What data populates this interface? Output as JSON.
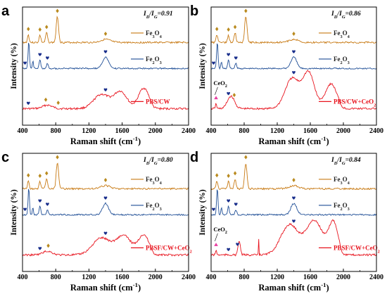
{
  "colors": {
    "fe3o4": "#c87a14",
    "fe2o3": "#1f4e96",
    "sample": "#e8141e",
    "marker_fe3o4": "#b98a1e",
    "marker_fe2o3": "#1a2f8c",
    "marker_ceo2": "#e83ca0"
  },
  "marker_icons": {
    "fe3o4": "diamond-icon",
    "fe2o3": "heart-icon",
    "ceo2": "triangle-icon"
  },
  "chart_data": [
    {
      "type": "line",
      "panel_label": "a",
      "ratio_label": "I",
      "ratio_sub1": "D",
      "ratio_mid": "/I",
      "ratio_sub2": "G",
      "ratio_value": "=0.91",
      "xlabel": "Raman shift (cm",
      "xlabel_sup": "-1",
      "xlabel_end": ")",
      "ylabel": "Intensity (%)",
      "xlim": [
        400,
        2400
      ],
      "xticks": [
        400,
        800,
        1200,
        1600,
        2000,
        2400
      ],
      "series": [
        {
          "name_main": "Fe",
          "name_sub1": "3",
          "name_mid": "O",
          "name_sub2": "4",
          "key": "fe3o4",
          "peaks": [
            [
              470,
              0.3,
              14
            ],
            [
              610,
              0.28,
              15
            ],
            [
              690,
              0.38,
              16
            ],
            [
              820,
              1.0,
              20
            ],
            [
              1400,
              0.12,
              80
            ]
          ]
        },
        {
          "name_main": "Fe",
          "name_sub1": "2",
          "name_mid": "O",
          "name_sub2": "3",
          "key": "fe2o3",
          "peaks": [
            [
              475,
              0.95,
              12
            ],
            [
              525,
              0.25,
              10
            ],
            [
              610,
              0.3,
              14
            ],
            [
              700,
              0.18,
              14
            ],
            [
              1400,
              0.4,
              50
            ]
          ]
        },
        {
          "name": "PBS/CW",
          "key": "sample",
          "peaks": [
            [
              700,
              0.1,
              80
            ],
            [
              1350,
              0.4,
              130
            ],
            [
              1580,
              0.48,
              110
            ],
            [
              1860,
              0.58,
              90
            ]
          ]
        }
      ],
      "annotations": [
        {
          "marker": "fe3o4",
          "x": 470,
          "series": 0
        },
        {
          "marker": "fe3o4",
          "x": 610,
          "series": 0
        },
        {
          "marker": "fe3o4",
          "x": 690,
          "series": 0
        },
        {
          "marker": "fe3o4",
          "x": 820,
          "series": 0
        },
        {
          "marker": "fe3o4",
          "x": 1400,
          "series": 0
        },
        {
          "marker": "fe2o3",
          "x": 430,
          "series": 1
        },
        {
          "marker": "fe2o3",
          "x": 610,
          "series": 1
        },
        {
          "marker": "fe2o3",
          "x": 700,
          "series": 1
        },
        {
          "marker": "fe2o3",
          "x": 1400,
          "series": 1
        },
        {
          "marker": "fe2o3",
          "x": 470,
          "series": 2
        },
        {
          "marker": "fe3o4",
          "x": 680,
          "series": 2
        },
        {
          "marker": "fe3o4",
          "x": 830,
          "series": 2
        },
        {
          "marker": "fe2o3",
          "x": 1400,
          "series": 2
        }
      ]
    },
    {
      "type": "line",
      "panel_label": "b",
      "ratio_label": "I",
      "ratio_sub1": "D",
      "ratio_mid": "/I",
      "ratio_sub2": "G",
      "ratio_value": "=0.86",
      "xlabel": "Raman shift (cm",
      "xlabel_sup": "-1",
      "xlabel_end": ")",
      "ylabel": "Intensity (%)",
      "xlim": [
        400,
        2400
      ],
      "xticks": [
        400,
        800,
        1200,
        1600,
        2000,
        2400
      ],
      "ceo2_label": "CeO",
      "ceo2_sub": "2",
      "series": [
        {
          "name_main": "Fe",
          "name_sub1": "3",
          "name_mid": "O",
          "name_sub2": "4",
          "key": "fe3o4",
          "peaks": [
            [
              470,
              0.3,
              14
            ],
            [
              610,
              0.28,
              15
            ],
            [
              690,
              0.38,
              16
            ],
            [
              820,
              1.0,
              20
            ],
            [
              1400,
              0.12,
              80
            ]
          ]
        },
        {
          "name_main": "Fe",
          "name_sub1": "2",
          "name_mid": "O",
          "name_sub2": "3",
          "key": "fe2o3",
          "peaks": [
            [
              475,
              0.95,
              12
            ],
            [
              525,
              0.25,
              10
            ],
            [
              610,
              0.3,
              14
            ],
            [
              700,
              0.18,
              14
            ],
            [
              1400,
              0.4,
              50
            ]
          ]
        },
        {
          "name": "PBS/CW+CeO",
          "name_sub": "2",
          "key": "sample",
          "peaks": [
            [
              460,
              0.15,
              10
            ],
            [
              640,
              0.35,
              60
            ],
            [
              1380,
              0.85,
              120
            ],
            [
              1580,
              1.0,
              100
            ],
            [
              1850,
              0.7,
              100
            ]
          ]
        }
      ],
      "annotations": [
        {
          "marker": "fe3o4",
          "x": 470,
          "series": 0
        },
        {
          "marker": "fe3o4",
          "x": 610,
          "series": 0
        },
        {
          "marker": "fe3o4",
          "x": 690,
          "series": 0
        },
        {
          "marker": "fe3o4",
          "x": 820,
          "series": 0
        },
        {
          "marker": "fe3o4",
          "x": 1400,
          "series": 0
        },
        {
          "marker": "fe2o3",
          "x": 430,
          "series": 1
        },
        {
          "marker": "fe2o3",
          "x": 610,
          "series": 1
        },
        {
          "marker": "fe2o3",
          "x": 700,
          "series": 1
        },
        {
          "marker": "fe2o3",
          "x": 1400,
          "series": 1
        },
        {
          "marker": "ceo2",
          "x": 460,
          "series": 2
        },
        {
          "marker": "fe2o3",
          "x": 610,
          "series": 2
        },
        {
          "marker": "fe3o4",
          "x": 680,
          "series": 2
        },
        {
          "marker": "fe2o3",
          "x": 1400,
          "series": 2
        }
      ]
    },
    {
      "type": "line",
      "panel_label": "c",
      "ratio_label": "I",
      "ratio_sub1": "D",
      "ratio_mid": "/I",
      "ratio_sub2": "G",
      "ratio_value": "=0.80",
      "xlabel": "Raman shift (cm",
      "xlabel_sup": "-1",
      "xlabel_end": ")",
      "ylabel": "Intensity (%)",
      "xlim": [
        400,
        2400
      ],
      "xticks": [
        400,
        800,
        1200,
        1600,
        2000,
        2400
      ],
      "series": [
        {
          "name_main": "Fe",
          "name_sub1": "3",
          "name_mid": "O",
          "name_sub2": "4",
          "key": "fe3o4",
          "peaks": [
            [
              470,
              0.3,
              14
            ],
            [
              610,
              0.28,
              15
            ],
            [
              690,
              0.38,
              16
            ],
            [
              820,
              1.0,
              20
            ],
            [
              1400,
              0.12,
              80
            ]
          ]
        },
        {
          "name_main": "Fe",
          "name_sub1": "2",
          "name_mid": "O",
          "name_sub2": "3",
          "key": "fe2o3",
          "peaks": [
            [
              475,
              0.95,
              12
            ],
            [
              525,
              0.25,
              10
            ],
            [
              610,
              0.3,
              14
            ],
            [
              700,
              0.18,
              14
            ],
            [
              1400,
              0.4,
              50
            ]
          ]
        },
        {
          "name": "PBSF/CW+CeO",
          "name_sub": "2",
          "key": "sample",
          "peaks": [
            [
              700,
              0.12,
              80
            ],
            [
              1350,
              0.55,
              150
            ],
            [
              1620,
              0.62,
              130
            ],
            [
              1860,
              0.65,
              90
            ]
          ]
        }
      ],
      "annotations": [
        {
          "marker": "fe3o4",
          "x": 470,
          "series": 0
        },
        {
          "marker": "fe3o4",
          "x": 610,
          "series": 0
        },
        {
          "marker": "fe3o4",
          "x": 690,
          "series": 0
        },
        {
          "marker": "fe3o4",
          "x": 820,
          "series": 0
        },
        {
          "marker": "fe3o4",
          "x": 1400,
          "series": 0
        },
        {
          "marker": "fe2o3",
          "x": 430,
          "series": 1
        },
        {
          "marker": "fe2o3",
          "x": 610,
          "series": 1
        },
        {
          "marker": "fe2o3",
          "x": 700,
          "series": 1
        },
        {
          "marker": "fe2o3",
          "x": 1400,
          "series": 1
        },
        {
          "marker": "fe2o3",
          "x": 610,
          "series": 2
        },
        {
          "marker": "fe3o4",
          "x": 710,
          "series": 2
        },
        {
          "marker": "fe2o3",
          "x": 1400,
          "series": 2
        }
      ]
    },
    {
      "type": "line",
      "panel_label": "d",
      "ratio_label": "I",
      "ratio_sub1": "D",
      "ratio_mid": "/I",
      "ratio_sub2": "G",
      "ratio_value": "=0.84",
      "xlabel": "Raman shift (cm",
      "xlabel_sup": "-1",
      "xlabel_end": ")",
      "ylabel": "Intensity (%)",
      "xlim": [
        400,
        2400
      ],
      "xticks": [
        400,
        800,
        1200,
        1600,
        2000,
        2400
      ],
      "ceo2_label": "CeO",
      "ceo2_sub": "2",
      "series": [
        {
          "name_main": "Fe",
          "name_sub1": "3",
          "name_mid": "O",
          "name_sub2": "4",
          "key": "fe3o4",
          "peaks": [
            [
              470,
              0.3,
              14
            ],
            [
              610,
              0.28,
              15
            ],
            [
              690,
              0.38,
              16
            ],
            [
              820,
              1.0,
              20
            ],
            [
              1400,
              0.12,
              80
            ]
          ]
        },
        {
          "name_main": "Fe",
          "name_sub1": "2",
          "name_mid": "O",
          "name_sub2": "3",
          "key": "fe2o3",
          "peaks": [
            [
              475,
              0.95,
              12
            ],
            [
              525,
              0.25,
              10
            ],
            [
              610,
              0.3,
              14
            ],
            [
              700,
              0.18,
              14
            ],
            [
              1400,
              0.4,
              50
            ]
          ]
        },
        {
          "name": "PBSF/CW+CeO",
          "name_sub": "2",
          "key": "sample",
          "peaks": [
            [
              460,
              0.12,
              10
            ],
            [
              740,
              0.35,
              20
            ],
            [
              975,
              0.45,
              3
            ],
            [
              1350,
              0.75,
              150
            ],
            [
              1650,
              0.85,
              140
            ],
            [
              1880,
              0.8,
              80
            ]
          ]
        }
      ],
      "annotations": [
        {
          "marker": "fe3o4",
          "x": 470,
          "series": 0
        },
        {
          "marker": "fe3o4",
          "x": 610,
          "series": 0
        },
        {
          "marker": "fe3o4",
          "x": 690,
          "series": 0
        },
        {
          "marker": "fe3o4",
          "x": 820,
          "series": 0
        },
        {
          "marker": "fe3o4",
          "x": 1400,
          "series": 0
        },
        {
          "marker": "fe2o3",
          "x": 430,
          "series": 1
        },
        {
          "marker": "fe2o3",
          "x": 610,
          "series": 1
        },
        {
          "marker": "fe2o3",
          "x": 700,
          "series": 1
        },
        {
          "marker": "fe2o3",
          "x": 1400,
          "series": 1
        },
        {
          "marker": "ceo2",
          "x": 460,
          "series": 2
        },
        {
          "marker": "fe2o3",
          "x": 610,
          "series": 2
        },
        {
          "marker": "fe2o3",
          "x": 720,
          "series": 2
        },
        {
          "marker": "fe2o3",
          "x": 1400,
          "series": 2
        }
      ]
    }
  ]
}
